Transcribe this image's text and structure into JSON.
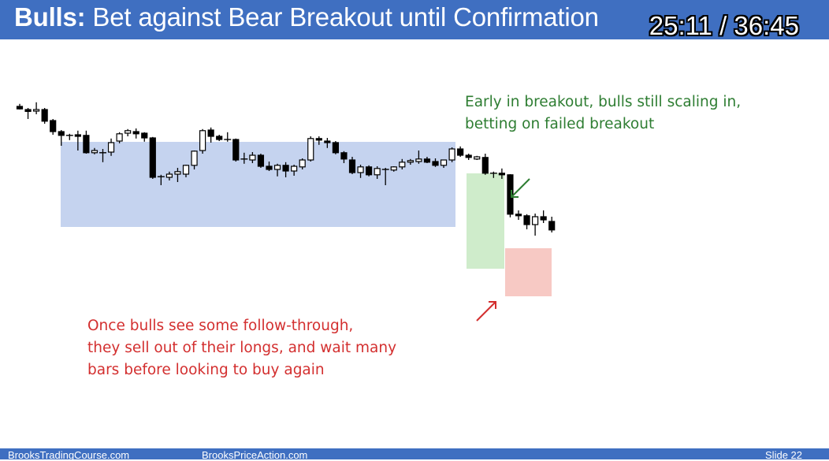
{
  "title": {
    "bold": "Bulls:",
    "rest": " Bet against Bear Breakout until Confirmation"
  },
  "video": {
    "timecode": "25:11 / 36:45"
  },
  "annotations": {
    "green": [
      "Early in breakout, bulls still scaling in,",
      "betting on failed breakout"
    ],
    "red": [
      "Once bulls see some follow-through,",
      "they sell out of their longs, and wait many",
      "bars before looking to buy again"
    ]
  },
  "footer": {
    "left": "BrooksTradingCourse.com",
    "center": "BrooksPriceAction.com",
    "right": "Slide  22"
  },
  "colors": {
    "title_bar": "#3f6fc1",
    "range_box": "#c5d3ef",
    "breakout_box": "#cfeccb",
    "follow_box": "#f7c9c4",
    "green_text": "#2e7d32",
    "red_text": "#d32f2f"
  },
  "chart_data": {
    "type": "candlestick",
    "ohlc": [
      [
        97.5,
        98.3,
        96.5,
        96.7
      ],
      [
        96.5,
        97.0,
        93.5,
        95.9
      ],
      [
        96.0,
        98.8,
        95.0,
        96.5
      ],
      [
        96.5,
        97.0,
        92.0,
        92.8
      ],
      [
        93.0,
        93.5,
        88.5,
        89.5
      ],
      [
        89.5,
        90.0,
        85.0,
        88.3
      ],
      [
        88.3,
        88.8,
        86.8,
        88.3
      ],
      [
        88.5,
        89.8,
        83.5,
        88.0
      ],
      [
        88.3,
        89.8,
        82.5,
        82.8
      ],
      [
        82.8,
        84.3,
        82.3,
        83.5
      ],
      [
        82.8,
        84.0,
        79.8,
        82.5
      ],
      [
        83.0,
        87.3,
        81.8,
        86.0
      ],
      [
        86.5,
        89.3,
        85.8,
        88.8
      ],
      [
        89.0,
        90.3,
        88.0,
        89.8
      ],
      [
        89.5,
        90.5,
        87.3,
        88.8
      ],
      [
        89.0,
        89.3,
        86.3,
        87.5
      ],
      [
        87.5,
        87.8,
        74.5,
        75.0
      ],
      [
        75.0,
        75.8,
        72.5,
        75.2
      ],
      [
        75.0,
        76.8,
        74.0,
        76.0
      ],
      [
        76.0,
        78.0,
        73.5,
        76.8
      ],
      [
        76.0,
        79.0,
        75.0,
        78.8
      ],
      [
        78.8,
        83.5,
        77.5,
        83.3
      ],
      [
        83.5,
        90.3,
        82.5,
        89.8
      ],
      [
        90.0,
        90.8,
        86.0,
        88.0
      ],
      [
        88.0,
        88.5,
        86.5,
        87.0
      ],
      [
        87.0,
        89.3,
        86.3,
        87.0
      ],
      [
        87.0,
        87.3,
        80.0,
        80.5
      ],
      [
        80.5,
        82.8,
        79.3,
        80.8
      ],
      [
        80.5,
        83.0,
        79.5,
        82.0
      ],
      [
        82.0,
        82.5,
        78.0,
        78.5
      ],
      [
        78.5,
        80.0,
        77.0,
        77.5
      ],
      [
        77.5,
        79.3,
        75.3,
        78.8
      ],
      [
        78.8,
        79.8,
        75.0,
        77.0
      ],
      [
        77.0,
        79.0,
        75.5,
        78.5
      ],
      [
        78.3,
        81.0,
        77.5,
        80.5
      ],
      [
        80.5,
        88.0,
        80.0,
        87.3
      ],
      [
        87.3,
        88.0,
        85.3,
        86.8
      ],
      [
        86.5,
        87.5,
        84.3,
        86.0
      ],
      [
        86.0,
        86.5,
        82.3,
        82.8
      ],
      [
        82.8,
        83.3,
        79.5,
        80.8
      ],
      [
        80.5,
        81.5,
        76.0,
        76.5
      ],
      [
        76.5,
        79.0,
        74.8,
        78.3
      ],
      [
        78.3,
        78.8,
        75.3,
        75.8
      ],
      [
        75.8,
        78.5,
        74.5,
        77.8
      ],
      [
        77.5,
        78.0,
        72.5,
        77.5
      ],
      [
        77.3,
        78.5,
        76.8,
        78.3
      ],
      [
        78.3,
        80.8,
        77.5,
        79.8
      ],
      [
        79.8,
        80.8,
        79.0,
        80.3
      ],
      [
        80.0,
        83.5,
        79.3,
        80.8
      ],
      [
        80.8,
        81.5,
        79.5,
        79.8
      ],
      [
        80.0,
        81.0,
        78.3,
        78.8
      ],
      [
        78.8,
        80.5,
        78.0,
        80.5
      ],
      [
        80.5,
        84.5,
        79.8,
        84.0
      ],
      [
        84.0,
        84.8,
        81.5,
        82.0
      ],
      [
        82.0,
        82.5,
        80.5,
        81.3
      ],
      [
        80.8,
        81.8,
        80.5,
        81.5
      ],
      [
        81.3,
        82.5,
        75.8,
        76.3
      ],
      [
        76.3,
        76.8,
        74.8,
        76.3
      ],
      [
        76.3,
        77.8,
        74.5,
        75.8
      ],
      [
        75.8,
        76.0,
        62.3,
        63.3
      ],
      [
        63.3,
        64.5,
        61.5,
        62.8
      ],
      [
        62.8,
        63.3,
        58.5,
        60.0
      ],
      [
        60.0,
        63.5,
        56.5,
        62.5
      ],
      [
        62.5,
        64.5,
        60.5,
        61.5
      ],
      [
        61.0,
        62.5,
        57.5,
        58.3
      ]
    ],
    "price_range": [
      50,
      100
    ]
  }
}
